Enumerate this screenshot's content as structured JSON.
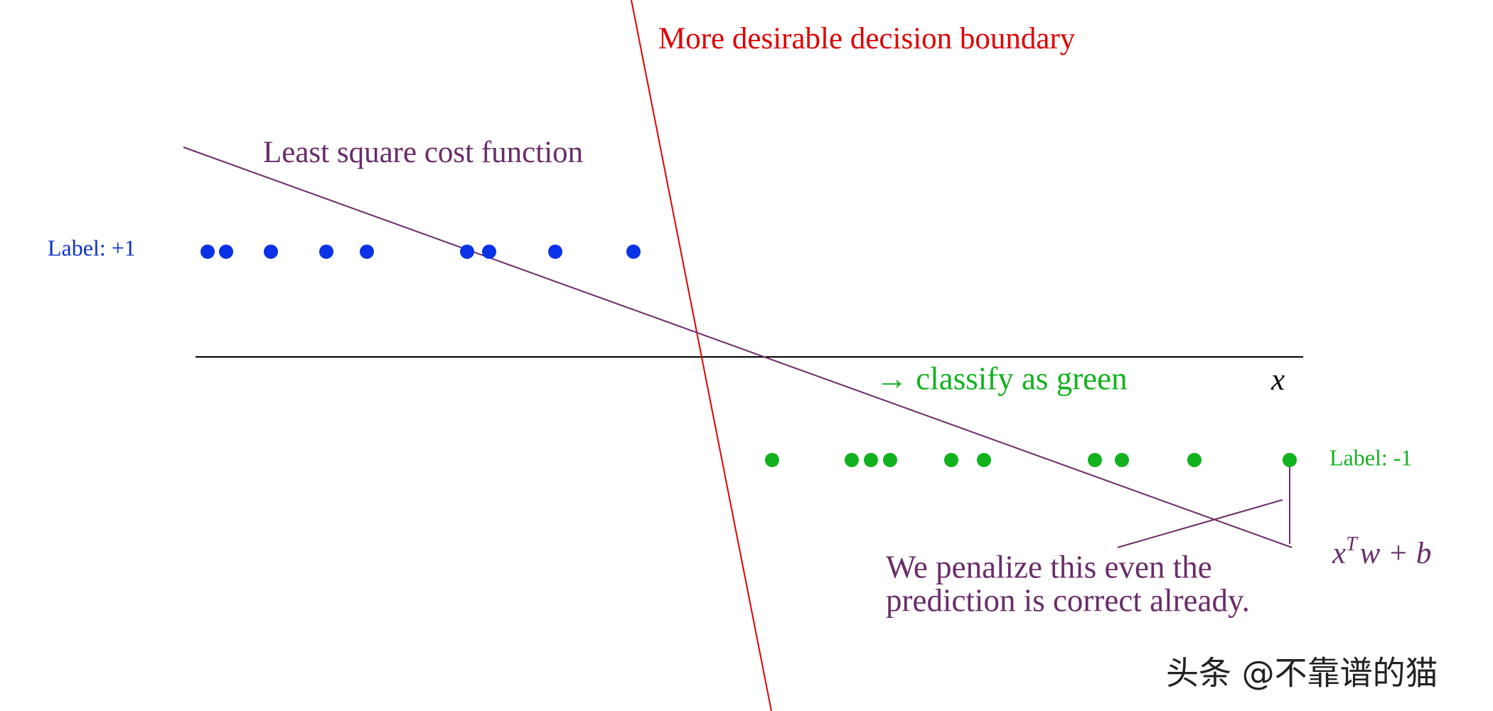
{
  "boundary_label": "More desirable decision boundary",
  "cost_label": "Least square cost function",
  "positive_label": "Label: +1",
  "negative_label": "Label: -1",
  "classify_label": "→ classify as green",
  "axis_label": "x",
  "formula": {
    "base": "x",
    "sup": "T",
    "rest": "w + b"
  },
  "note": {
    "lines": [
      "We penalize this even the",
      "prediction is correct already."
    ]
  },
  "watermark": "头条 @不靠谱的猫"
}
